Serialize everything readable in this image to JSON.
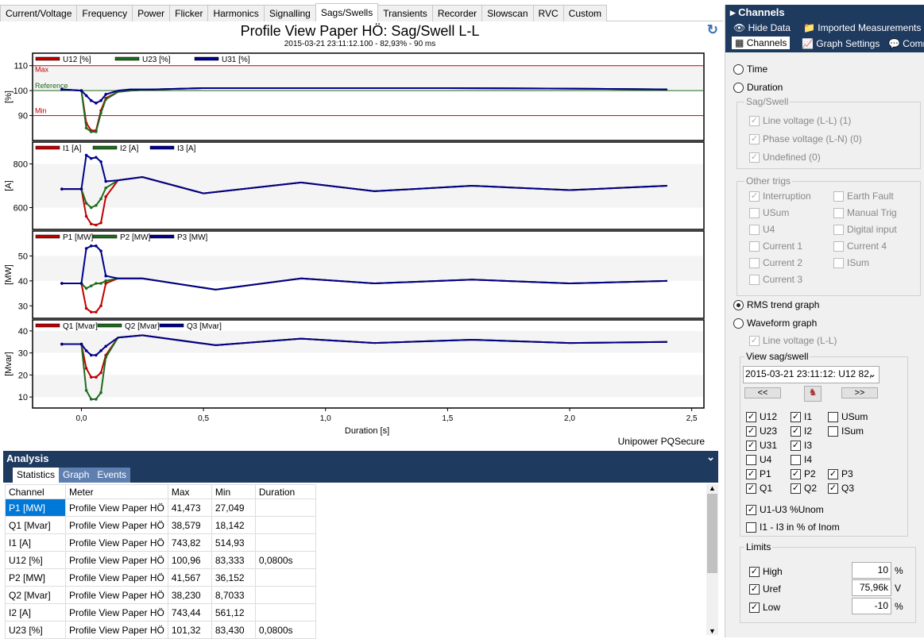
{
  "tabs": [
    "Current/Voltage",
    "Frequency",
    "Power",
    "Flicker",
    "Harmonics",
    "Signalling",
    "Sags/Swells",
    "Transients",
    "Recorder",
    "Slowscan",
    "RVC",
    "Custom"
  ],
  "active_tab": "Sags/Swells",
  "chart": {
    "title": "Profile View Paper HÖ: Sag/Swell L-L",
    "subtitle": "2015-03-21 23:11:12.100 - 82,93% - 90 ms",
    "brand": "Unipower PQSecure",
    "xlabel": "Duration [s]",
    "xticks": [
      "0,0",
      "0,5",
      "1,0",
      "1,5",
      "2,0",
      "2,5"
    ],
    "colors": {
      "red": "#c00000",
      "green": "#1e6b1e",
      "blue": "#00008b"
    }
  },
  "chart_data": [
    {
      "type": "line",
      "ylabel": "[%]",
      "ylim": [
        80,
        115
      ],
      "yticks": [
        "110",
        "100",
        "90"
      ],
      "legend": [
        "U12 [%]",
        "U23 [%]",
        "U31 [%]"
      ],
      "annotations": {
        "max": "Max",
        "reference": "Reference",
        "min": "Min",
        "max_value": 110,
        "ref_value": 100,
        "min_value": 90
      },
      "x": [
        -0.08,
        0,
        0.02,
        0.04,
        0.06,
        0.08,
        0.1,
        0.15,
        0.2,
        0.3,
        0.5,
        1.0,
        1.5,
        2.0,
        2.4
      ],
      "series": [
        {
          "name": "U12 [%]",
          "values": [
            100.5,
            100,
            87,
            84,
            84,
            92,
            97,
            99.5,
            100,
            100.5,
            101,
            101,
            101,
            100.8,
            100.5
          ]
        },
        {
          "name": "U23 [%]",
          "values": [
            100.5,
            100,
            85,
            83.5,
            83.5,
            91,
            96.5,
            99.5,
            100,
            100.5,
            101,
            101,
            101,
            100.8,
            100.5
          ]
        },
        {
          "name": "U31 [%]",
          "values": [
            100.5,
            100,
            98,
            96,
            95,
            96,
            98.5,
            100,
            100.5,
            100.5,
            101,
            101,
            101,
            100.8,
            100.5
          ]
        }
      ]
    },
    {
      "type": "line",
      "ylabel": "[A]",
      "ylim": [
        500,
        900
      ],
      "yticks": [
        "800",
        "600"
      ],
      "legend": [
        "I1 [A]",
        "I2 [A]",
        "I3 [A]"
      ],
      "x": [
        -0.08,
        0,
        0.02,
        0.04,
        0.06,
        0.08,
        0.1,
        0.15,
        0.25,
        0.5,
        0.9,
        1.2,
        1.6,
        2.0,
        2.4
      ],
      "series": [
        {
          "name": "I1 [A]",
          "values": [
            685,
            685,
            560,
            525,
            520,
            530,
            650,
            725,
            740,
            665,
            715,
            675,
            700,
            680,
            700
          ]
        },
        {
          "name": "I2 [A]",
          "values": [
            685,
            685,
            620,
            600,
            610,
            640,
            690,
            725,
            740,
            665,
            715,
            675,
            700,
            680,
            700
          ]
        },
        {
          "name": "I3 [A]",
          "values": [
            685,
            685,
            840,
            825,
            830,
            810,
            720,
            725,
            740,
            665,
            715,
            675,
            700,
            680,
            700
          ]
        }
      ]
    },
    {
      "type": "line",
      "ylabel": "[MW]",
      "ylim": [
        25,
        60
      ],
      "yticks": [
        "50",
        "40",
        "30"
      ],
      "legend": [
        "P1 [MW]",
        "P2 [MW]",
        "P3 [MW]"
      ],
      "x": [
        -0.08,
        0,
        0.02,
        0.04,
        0.06,
        0.08,
        0.1,
        0.15,
        0.25,
        0.55,
        0.9,
        1.2,
        1.6,
        2.0,
        2.4
      ],
      "series": [
        {
          "name": "P1 [MW]",
          "values": [
            39,
            39,
            29,
            27.5,
            27.5,
            30,
            39,
            41,
            41,
            36.5,
            41,
            39,
            40.5,
            39,
            40
          ]
        },
        {
          "name": "P2 [MW]",
          "values": [
            39,
            39,
            37,
            38,
            39,
            39,
            40,
            41,
            41,
            36.5,
            41,
            39,
            40.5,
            39,
            40
          ]
        },
        {
          "name": "P3 [MW]",
          "values": [
            39,
            39,
            53,
            54,
            54,
            52,
            42,
            41,
            41,
            36.5,
            41,
            39,
            40.5,
            39,
            40
          ]
        }
      ]
    },
    {
      "type": "line",
      "ylabel": "[Mvar]",
      "ylim": [
        5,
        45
      ],
      "yticks": [
        "40",
        "30",
        "20",
        "10"
      ],
      "legend": [
        "Q1 [Mvar]",
        "Q2 [Mvar]",
        "Q3 [Mvar]"
      ],
      "x": [
        -0.08,
        0,
        0.02,
        0.04,
        0.06,
        0.08,
        0.1,
        0.15,
        0.25,
        0.55,
        0.9,
        1.2,
        1.6,
        2.0,
        2.4
      ],
      "series": [
        {
          "name": "Q1 [Mvar]",
          "values": [
            34,
            34,
            23,
            19,
            19,
            21,
            29,
            37,
            38,
            33.5,
            36.5,
            34.5,
            36,
            34.5,
            35
          ]
        },
        {
          "name": "Q2 [Mvar]",
          "values": [
            34,
            34,
            13,
            9,
            9,
            12,
            28,
            37,
            38,
            33.5,
            36.5,
            34.5,
            36,
            34.5,
            35
          ]
        },
        {
          "name": "Q3 [Mvar]",
          "values": [
            34,
            34,
            31,
            29,
            29,
            31,
            33,
            37,
            38,
            33.5,
            36.5,
            34.5,
            36,
            34.5,
            35
          ]
        }
      ]
    }
  ],
  "analysis": {
    "title": "Analysis",
    "tabs": [
      "Statistics",
      "Graph",
      "Events"
    ],
    "columns": [
      "Channel",
      "Meter",
      "Max",
      "Min",
      "Duration"
    ],
    "rows": [
      [
        "P1 [MW]",
        "Profile View Paper HÖ",
        "41,473",
        "27,049",
        ""
      ],
      [
        "Q1 [Mvar]",
        "Profile View Paper HÖ",
        "38,579",
        "18,142",
        ""
      ],
      [
        "I1 [A]",
        "Profile View Paper HÖ",
        "743,82",
        "514,93",
        ""
      ],
      [
        "U12 [%]",
        "Profile View Paper HÖ",
        "100,96",
        "83,333",
        "0,0800s"
      ],
      [
        "P2 [MW]",
        "Profile View Paper HÖ",
        "41,567",
        "36,152",
        ""
      ],
      [
        "Q2 [Mvar]",
        "Profile View Paper HÖ",
        "38,230",
        "8,7033",
        ""
      ],
      [
        "I2 [A]",
        "Profile View Paper HÖ",
        "743,44",
        "561,12",
        ""
      ],
      [
        "U23 [%]",
        "Profile View Paper HÖ",
        "101,32",
        "83,430",
        "0,0800s"
      ]
    ]
  },
  "panel": {
    "title": "Channels",
    "tabs": [
      "Hide Data",
      "Imported Measurements",
      "Channels",
      "Graph Settings",
      "Comm"
    ],
    "time": "Time",
    "duration": "Duration",
    "sagswell_label": "Sag/Swell",
    "sagswell": [
      "Line voltage (L-L) (1)",
      "Phase voltage (L-N) (0)",
      "Undefined (0)"
    ],
    "other_label": "Other trigs",
    "other_left": [
      "Interruption",
      "USum",
      "U4",
      "Current 1",
      "Current 2",
      "Current 3"
    ],
    "other_right": [
      "Earth Fault",
      "Manual Trig",
      "Digital input",
      "Current 4",
      "ISum"
    ],
    "rms": "RMS trend graph",
    "waveform": "Waveform graph",
    "wave_line": "Line voltage (L-L)",
    "view_label": "View sag/swell",
    "view_select": "2015-03-21 23:11:12: U12 82,",
    "prev": "<<",
    "next": ">>",
    "ch": [
      "U12",
      "U23",
      "U31",
      "U4",
      "P1",
      "Q1",
      "I1",
      "I2",
      "I3",
      "I4",
      "P2",
      "Q2",
      "USum",
      "ISum",
      "P3",
      "Q3"
    ],
    "pct_u": "U1-U3 %Unom",
    "pct_i": "I1 - I3 in % of Inom",
    "limits_label": "Limits",
    "high": "High",
    "high_val": "10",
    "high_unit": "%",
    "uref": "Uref",
    "uref_val": "75,96k",
    "uref_unit": "V",
    "low": "Low",
    "low_val": "-10",
    "low_unit": "%"
  }
}
